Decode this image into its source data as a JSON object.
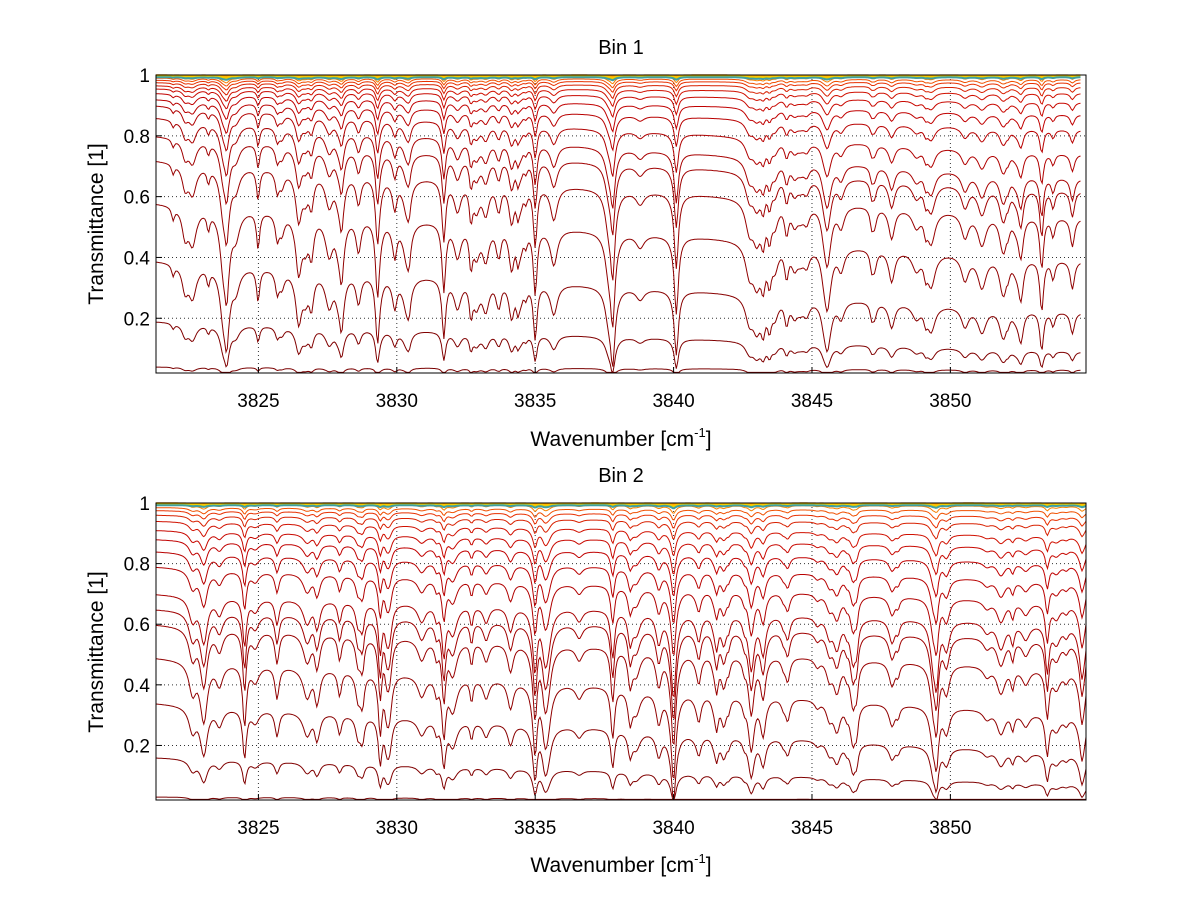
{
  "chart_data": [
    {
      "type": "line",
      "title": "Bin 1",
      "xlabel": "Wavenumber [cm",
      "xlabel_sup": "-1",
      "xlabel_tail": "]",
      "ylabel": "Transmittance [1]",
      "xlim": [
        3821.3,
        3854.9
      ],
      "ylim": [
        0.02,
        1.0
      ],
      "xticks": [
        3825,
        3830,
        3835,
        3840,
        3845,
        3850
      ],
      "xtick_labels": [
        "3825",
        "3830",
        "3835",
        "3840",
        "3845",
        "3850"
      ],
      "yticks": [
        0.2,
        0.4,
        0.6,
        0.8,
        1.0
      ],
      "ytick_labels": [
        "0.2",
        "0.4",
        "0.6",
        "0.8",
        "1"
      ],
      "grid": true,
      "x_start": 3821.3,
      "x_end": 3854.7,
      "line_start_values": [
        0.04,
        0.19,
        0.39,
        0.58,
        0.72,
        0.8,
        0.86,
        0.9,
        0.92,
        0.94,
        0.955,
        0.965,
        0.975,
        0.983,
        0.99,
        0.995
      ],
      "line_end_values": [
        0.03,
        0.09,
        0.22,
        0.39,
        0.53,
        0.62,
        0.66,
        0.74,
        0.82,
        0.87,
        0.91,
        0.94,
        0.96,
        0.975,
        0.985,
        0.995
      ],
      "strong_lines_x": [
        3829.3,
        3831.7,
        3835.0,
        3837.8,
        3840.1,
        3853.3
      ],
      "colors": [
        "#7a0000",
        "#800000",
        "#880000",
        "#900000",
        "#980000",
        "#a00000",
        "#a80000",
        "#b00000",
        "#b80000",
        "#c00000",
        "#c80800",
        "#d01000",
        "#d82000",
        "#e83000",
        "#f05000",
        "#f88000",
        "#ffa000",
        "#ffc000",
        "#e8d000",
        "#40a0a0"
      ]
    },
    {
      "type": "line",
      "title": "Bin 2",
      "xlabel": "Wavenumber [cm",
      "xlabel_sup": "-1",
      "xlabel_tail": "]",
      "ylabel": "Transmittance [1]",
      "xlim": [
        3821.3,
        3854.9
      ],
      "ylim": [
        0.02,
        1.0
      ],
      "xticks": [
        3825,
        3830,
        3835,
        3840,
        3845,
        3850
      ],
      "xtick_labels": [
        "3825",
        "3830",
        "3835",
        "3840",
        "3845",
        "3850"
      ],
      "yticks": [
        0.2,
        0.4,
        0.6,
        0.8,
        1.0
      ],
      "ytick_labels": [
        "0.2",
        "0.4",
        "0.6",
        "0.8",
        "1"
      ],
      "grid": true,
      "x_start": 3821.3,
      "x_end": 3854.9,
      "line_start_values": [
        0.03,
        0.16,
        0.34,
        0.49,
        0.6,
        0.65,
        0.7,
        0.79,
        0.84,
        0.88,
        0.91,
        0.94,
        0.96,
        0.975,
        0.985,
        0.995
      ],
      "line_end_values": [
        0.02,
        0.07,
        0.17,
        0.3,
        0.45,
        0.55,
        0.6,
        0.67,
        0.74,
        0.8,
        0.85,
        0.89,
        0.93,
        0.955,
        0.975,
        0.99
      ],
      "strong_lines_x": [
        3824.5,
        3829.4,
        3831.7,
        3835.0,
        3837.8,
        3840.0,
        3849.5,
        3853.5
      ],
      "colors": [
        "#7a0000",
        "#800000",
        "#880000",
        "#900000",
        "#980000",
        "#a00000",
        "#a80000",
        "#b00000",
        "#b80000",
        "#c00000",
        "#c80800",
        "#d01000",
        "#d82000",
        "#e83000",
        "#f05000",
        "#f88000",
        "#ffa000",
        "#ffc000",
        "#e8d000",
        "#40a0a0"
      ]
    }
  ]
}
